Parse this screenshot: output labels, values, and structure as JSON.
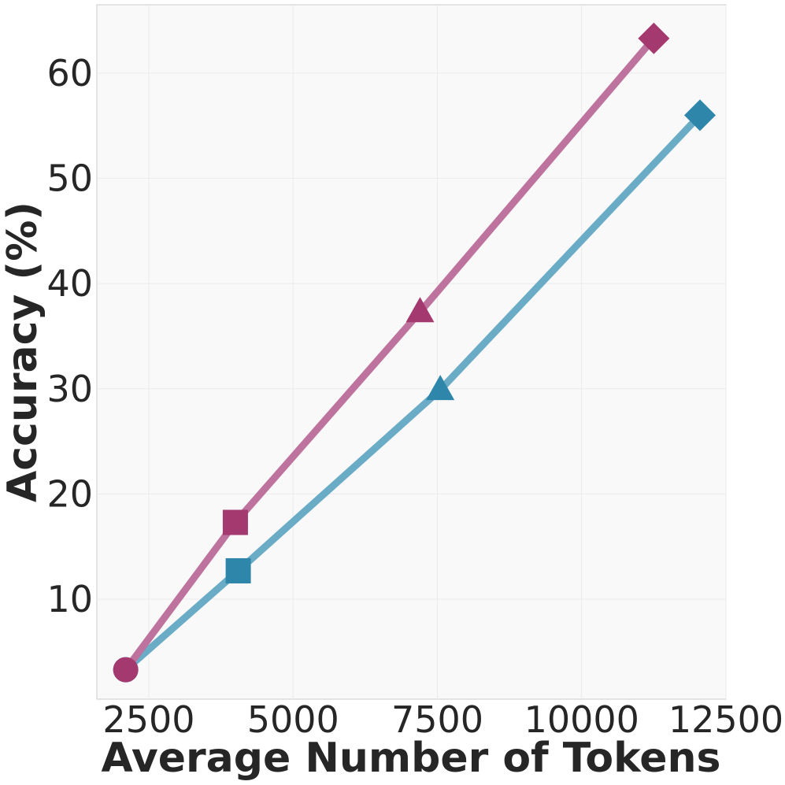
{
  "chart_data": {
    "type": "line",
    "title": "",
    "xlabel": "Average Number of Tokens",
    "ylabel": "Accuracy (%)",
    "xlim": [
      1600,
      12500
    ],
    "ylim": [
      0.5,
      66.5
    ],
    "x_ticks": [
      2500,
      5000,
      7500,
      10000,
      12500
    ],
    "y_ticks": [
      10,
      20,
      30,
      40,
      50,
      60
    ],
    "grid": true,
    "legend": "none",
    "series": [
      {
        "color": "#a3396f",
        "line_color": "#bd739d",
        "markers": [
          "circle",
          "square",
          "triangle",
          "diamond"
        ],
        "points": [
          {
            "x": 2100,
            "y": 3.3
          },
          {
            "x": 4000,
            "y": 17.3
          },
          {
            "x": 7200,
            "y": 37.3
          },
          {
            "x": 11250,
            "y": 63.3
          }
        ]
      },
      {
        "color": "#2e86ab",
        "line_color": "#6aabc6",
        "markers": [
          "circle",
          "square",
          "triangle",
          "diamond"
        ],
        "points": [
          {
            "x": 2100,
            "y": 3.3
          },
          {
            "x": 4050,
            "y": 12.7
          },
          {
            "x": 7550,
            "y": 29.9
          },
          {
            "x": 12050,
            "y": 56.0
          }
        ]
      }
    ]
  }
}
